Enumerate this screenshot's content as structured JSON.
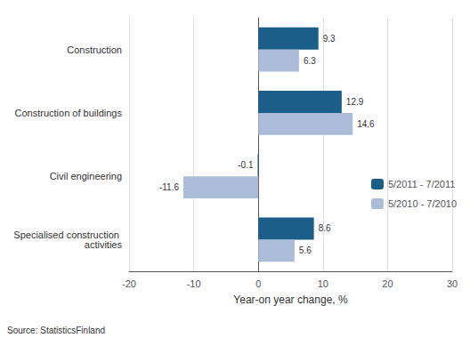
{
  "chart_data": {
    "type": "bar",
    "orientation": "horizontal",
    "categories": [
      "Construction",
      "Construction of buildings",
      "Civil engineering",
      "Specialised construction activities"
    ],
    "series": [
      {
        "name": "5/2011 - 7/2011",
        "color": "#1b5e8a",
        "values": [
          9.3,
          12.9,
          -0.1,
          8.6
        ]
      },
      {
        "name": "5/2010 - 7/2010",
        "color": "#aabcd8",
        "values": [
          6.3,
          14.6,
          -11.6,
          5.6
        ]
      }
    ],
    "xlim": [
      -20,
      30
    ],
    "xticks": [
      -20,
      -10,
      0,
      10,
      20,
      30
    ],
    "xlabel": "Year-on year change, %",
    "annotations": [
      "Source: StatisticsFinland"
    ],
    "data_labels": true,
    "grid": true,
    "legend": "lower right"
  }
}
